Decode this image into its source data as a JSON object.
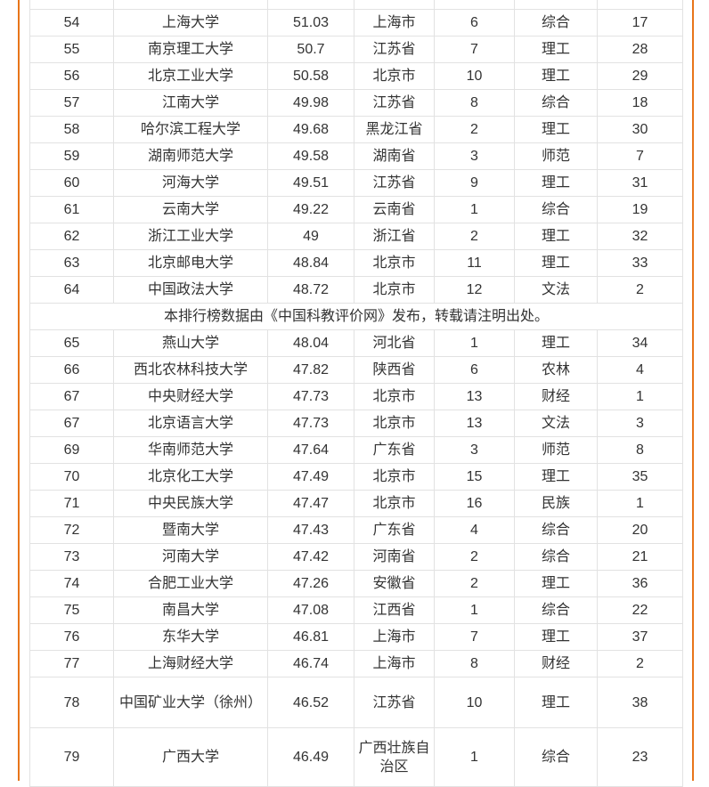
{
  "page": {
    "background": "#ffffff",
    "accent_border_color": "#e8751a",
    "grid_color": "#e2e2e2",
    "text_color": "#333333"
  },
  "table": {
    "column_names": [
      "rank",
      "university-name",
      "score",
      "province",
      "rank-in-province",
      "category",
      "rank-in-category"
    ],
    "note_row": {
      "text": "本排行榜数据由《中国科教评价网》发布，转载请注明出处。"
    },
    "rows": [
      {
        "kind": "partial-clipped-row",
        "cells": [
          "",
          "",
          "",
          "",
          "",
          "",
          ""
        ]
      },
      {
        "kind": "data",
        "cells": [
          "54",
          "上海大学",
          "51.03",
          "上海市",
          "6",
          "综合",
          "17"
        ]
      },
      {
        "kind": "data",
        "cells": [
          "55",
          "南京理工大学",
          "50.7",
          "江苏省",
          "7",
          "理工",
          "28"
        ]
      },
      {
        "kind": "data",
        "cells": [
          "56",
          "北京工业大学",
          "50.58",
          "北京市",
          "10",
          "理工",
          "29"
        ]
      },
      {
        "kind": "data",
        "cells": [
          "57",
          "江南大学",
          "49.98",
          "江苏省",
          "8",
          "综合",
          "18"
        ]
      },
      {
        "kind": "data",
        "cells": [
          "58",
          "哈尔滨工程大学",
          "49.68",
          "黑龙江省",
          "2",
          "理工",
          "30"
        ]
      },
      {
        "kind": "data",
        "cells": [
          "59",
          "湖南师范大学",
          "49.58",
          "湖南省",
          "3",
          "师范",
          "7"
        ]
      },
      {
        "kind": "data",
        "cells": [
          "60",
          "河海大学",
          "49.51",
          "江苏省",
          "9",
          "理工",
          "31"
        ]
      },
      {
        "kind": "data",
        "cells": [
          "61",
          "云南大学",
          "49.22",
          "云南省",
          "1",
          "综合",
          "19"
        ]
      },
      {
        "kind": "data",
        "cells": [
          "62",
          "浙江工业大学",
          "49",
          "浙江省",
          "2",
          "理工",
          "32"
        ]
      },
      {
        "kind": "data",
        "cells": [
          "63",
          "北京邮电大学",
          "48.84",
          "北京市",
          "11",
          "理工",
          "33"
        ]
      },
      {
        "kind": "data",
        "cells": [
          "64",
          "中国政法大学",
          "48.72",
          "北京市",
          "12",
          "文法",
          "2"
        ]
      },
      {
        "kind": "note"
      },
      {
        "kind": "data",
        "cells": [
          "65",
          "燕山大学",
          "48.04",
          "河北省",
          "1",
          "理工",
          "34"
        ]
      },
      {
        "kind": "data",
        "cells": [
          "66",
          "西北农林科技大学",
          "47.82",
          "陕西省",
          "6",
          "农林",
          "4"
        ]
      },
      {
        "kind": "data",
        "cells": [
          "67",
          "中央财经大学",
          "47.73",
          "北京市",
          "13",
          "财经",
          "1"
        ]
      },
      {
        "kind": "data",
        "cells": [
          "67",
          "北京语言大学",
          "47.73",
          "北京市",
          "13",
          "文法",
          "3"
        ]
      },
      {
        "kind": "data",
        "cells": [
          "69",
          "华南师范大学",
          "47.64",
          "广东省",
          "3",
          "师范",
          "8"
        ]
      },
      {
        "kind": "data",
        "cells": [
          "70",
          "北京化工大学",
          "47.49",
          "北京市",
          "15",
          "理工",
          "35"
        ]
      },
      {
        "kind": "data",
        "cells": [
          "71",
          "中央民族大学",
          "47.47",
          "北京市",
          "16",
          "民族",
          "1"
        ]
      },
      {
        "kind": "data",
        "cells": [
          "72",
          "暨南大学",
          "47.43",
          "广东省",
          "4",
          "综合",
          "20"
        ]
      },
      {
        "kind": "data",
        "cells": [
          "73",
          "河南大学",
          "47.42",
          "河南省",
          "2",
          "综合",
          "21"
        ]
      },
      {
        "kind": "data",
        "cells": [
          "74",
          "合肥工业大学",
          "47.26",
          "安徽省",
          "2",
          "理工",
          "36"
        ]
      },
      {
        "kind": "data",
        "cells": [
          "75",
          "南昌大学",
          "47.08",
          "江西省",
          "1",
          "综合",
          "22"
        ]
      },
      {
        "kind": "data",
        "cells": [
          "76",
          "东华大学",
          "46.81",
          "上海市",
          "7",
          "理工",
          "37"
        ]
      },
      {
        "kind": "data",
        "cells": [
          "77",
          "上海财经大学",
          "46.74",
          "上海市",
          "8",
          "财经",
          "2"
        ]
      },
      {
        "kind": "data",
        "cells": [
          "78",
          "中国矿业大学（徐州）",
          "46.52",
          "江苏省",
          "10",
          "理工",
          "38"
        ]
      },
      {
        "kind": "data",
        "cells": [
          "79",
          "广西大学",
          "46.49",
          "广西壮族自治区",
          "1",
          "综合",
          "23"
        ]
      }
    ]
  }
}
